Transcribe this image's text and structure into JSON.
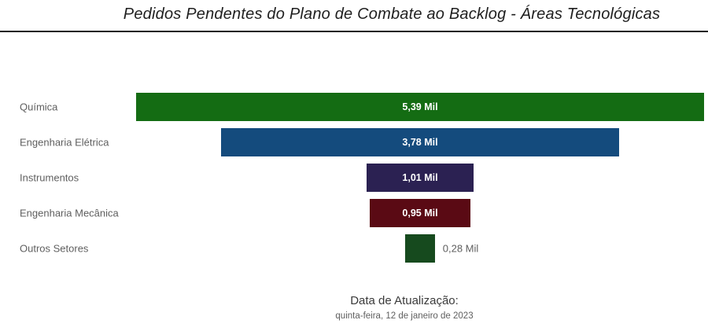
{
  "footer": {
    "label": "Data de Atualização:",
    "value": "quinta-feira, 12 de janeiro de 2023"
  },
  "chart_data": {
    "type": "funnel",
    "title": "Pedidos Pendentes do Plano de Combate ao Backlog - Áreas Tecnológicas",
    "categories": [
      "Química",
      "Engenharia Elétrica",
      "Instrumentos",
      "Engenharia Mecânica",
      "Outros Setores"
    ],
    "values": [
      5.39,
      3.78,
      1.01,
      0.95,
      0.28
    ],
    "value_labels": [
      "5,39 Mil",
      "3,78 Mil",
      "1,01 Mil",
      "0,95 Mil",
      "0,28 Mil"
    ],
    "unit": "Mil",
    "max_value": 5.39,
    "colors": [
      "#146c13",
      "#144b7d",
      "#2b2152",
      "#5a0a14",
      "#164a1e"
    ],
    "label_inside": [
      true,
      true,
      true,
      true,
      false
    ],
    "label_color_inside": "#ffffff",
    "label_color_outside": "#5f5f5f",
    "orientation": "horizontal-centered",
    "legend": "none",
    "grid": "off"
  }
}
